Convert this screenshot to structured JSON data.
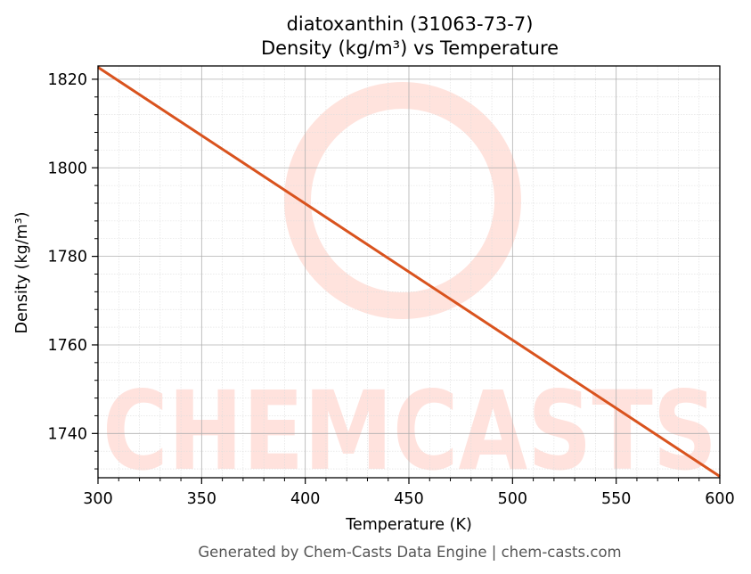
{
  "chart_data": {
    "type": "line",
    "title_line1": "diatoxanthin (31063-73-7)",
    "title_line2": "Density (kg/m³) vs Temperature",
    "xlabel": "Temperature (K)",
    "ylabel": "Density (kg/m³)",
    "xlim": [
      300,
      600
    ],
    "ylim": [
      1730,
      1823
    ],
    "x_ticks": [
      300,
      350,
      400,
      450,
      500,
      550,
      600
    ],
    "y_ticks": [
      1740,
      1760,
      1780,
      1800,
      1820
    ],
    "grid": true,
    "series": [
      {
        "color": "#d9531e",
        "x": [
          300,
          350,
          400,
          450,
          500,
          550,
          600
        ],
        "y": [
          1822.7,
          1807.3,
          1791.9,
          1776.5,
          1761.1,
          1745.7,
          1730.3
        ]
      }
    ]
  },
  "watermark": {
    "text": "CHEMCASTS",
    "color": "#ffd9d2"
  },
  "footer": "Generated by Chem-Casts Data Engine | chem-casts.com"
}
